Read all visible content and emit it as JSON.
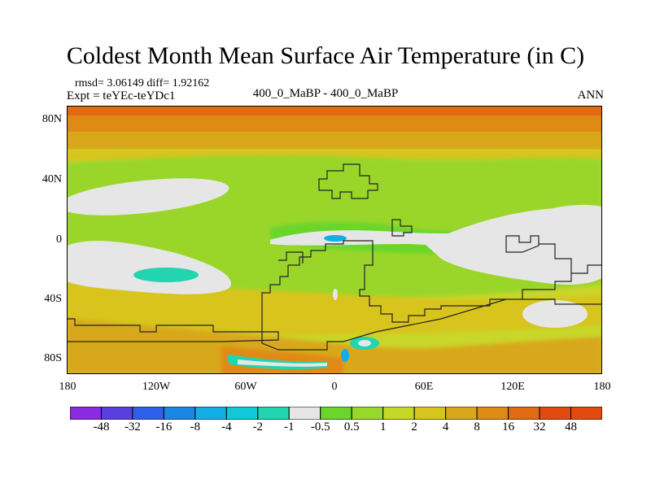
{
  "title": "Coldest Month Mean Surface Air Temperature (in C)",
  "stats_line1": "rmsd= 3.06149 diff= 1.92162",
  "stats_line2": "Expt = teYEc-teYDc1",
  "subtitle": "400_0_MaBP - 400_0_MaBP",
  "season": "ANN",
  "lat_labels": [
    "80N",
    "40N",
    "0",
    "40S",
    "80S"
  ],
  "lon_labels": [
    "180",
    "120W",
    "60W",
    "0",
    "60E",
    "120E",
    "180"
  ],
  "colorbar": {
    "labels": [
      "-48",
      "-32",
      "-16",
      "-8",
      "-4",
      "-2",
      "-1",
      "-0.5",
      "0.5",
      "1",
      "2",
      "4",
      "8",
      "16",
      "32",
      "48"
    ],
    "colors": [
      "#8a2be2",
      "#5a3fe0",
      "#2f5fe8",
      "#1a86e6",
      "#14aee6",
      "#10c8d8",
      "#22d4b0",
      "#e6e6e6",
      "#6ad62a",
      "#98d82a",
      "#c4d82a",
      "#d8c41e",
      "#d8a81a",
      "#e08a16",
      "#e26a12",
      "#e24a10"
    ]
  },
  "map_colors": {
    "base": "#c9d62a",
    "green": "#9ad62a",
    "bright_green": "#6ad62a",
    "white": "#e6e6e6",
    "cyan": "#22d4b0",
    "blue": "#14aee6",
    "orange": "#d8a81a",
    "dark_orange": "#e08a16",
    "red_orange": "#e26a12",
    "gold": "#d8c41e",
    "outline": "#222222"
  }
}
